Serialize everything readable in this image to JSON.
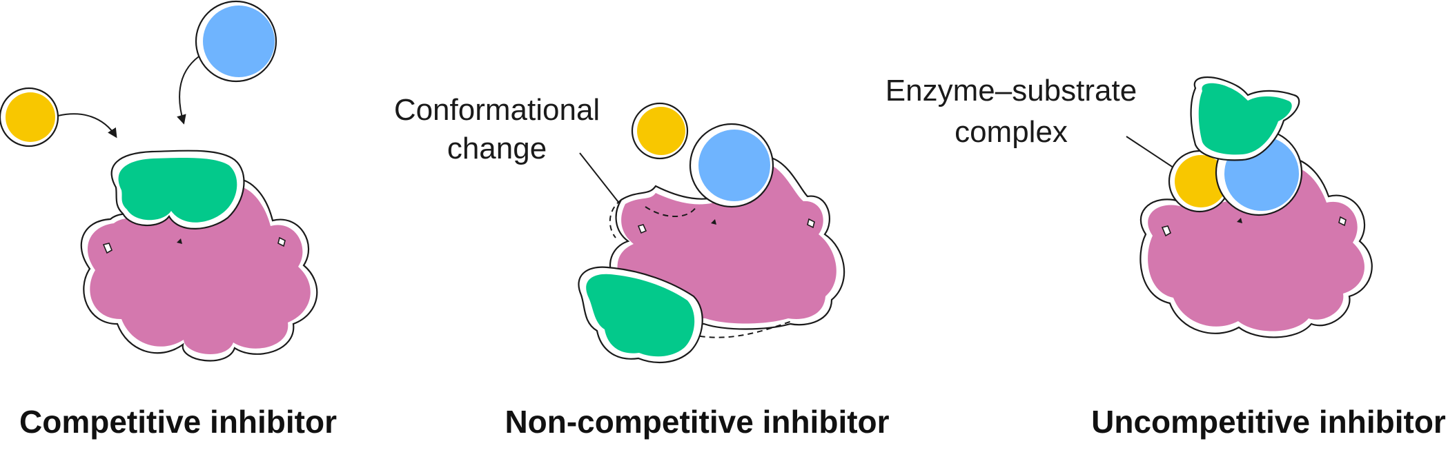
{
  "panels": [
    {
      "caption": "Competitive inhibitor"
    },
    {
      "caption": "Non-competitive inhibitor"
    },
    {
      "caption": "Uncompetitive inhibitor"
    }
  ],
  "annotations": {
    "conformational_change": [
      "Conformational",
      "change"
    ],
    "enzyme_substrate_complex": [
      "Enzyme–substrate",
      "complex"
    ]
  },
  "colors": {
    "enzyme": "#d478ae",
    "inhibitor": "#03c98b",
    "substrate": "#f8c700",
    "blue_molecule": "#6fb4fe",
    "outline": "#1a1a1a"
  }
}
